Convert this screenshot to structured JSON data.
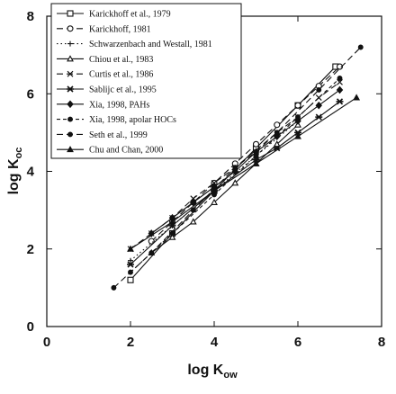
{
  "chart_data": {
    "type": "line",
    "title": "",
    "xlabel": "log K",
    "xlabel_sub": "ow",
    "ylabel": "log K",
    "ylabel_sub": "oc",
    "xlim": [
      0,
      8
    ],
    "ylim": [
      0,
      8
    ],
    "xticks": [
      "0",
      "2",
      "4",
      "6",
      "8"
    ],
    "yticks": [
      "0",
      "2",
      "4",
      "6",
      "8"
    ],
    "grid": false,
    "legend_position": "top-left",
    "series": [
      {
        "name": "Karickhoff et al., 1979",
        "dash": "solid",
        "marker": "square",
        "x": [
          2,
          3,
          4,
          5,
          6,
          6.9
        ],
        "y": [
          1.2,
          2.4,
          3.5,
          4.6,
          5.7,
          6.7
        ]
      },
      {
        "name": "Karickhoff, 1981",
        "dash": "longdash",
        "marker": "circle-open",
        "x": [
          2.5,
          3,
          3.5,
          4,
          4.5,
          5,
          5.5,
          6,
          6.5,
          7
        ],
        "y": [
          2.2,
          2.7,
          3.2,
          3.7,
          4.2,
          4.7,
          5.2,
          5.7,
          6.2,
          6.7
        ]
      },
      {
        "name": "Schwarzenbach and Westall, 1981",
        "dash": "dotted",
        "marker": "plus",
        "x": [
          2,
          3,
          4,
          5,
          6
        ],
        "y": [
          1.7,
          2.6,
          3.5,
          4.4,
          5.3
        ]
      },
      {
        "name": "Chiou et al., 1983",
        "dash": "solid",
        "marker": "triangle-open",
        "x": [
          2.5,
          3,
          3.5,
          4,
          4.5,
          5,
          5.5,
          6
        ],
        "y": [
          1.9,
          2.3,
          2.7,
          3.2,
          3.7,
          4.2,
          4.7,
          5.2
        ]
      },
      {
        "name": "Curtis et al., 1986",
        "dash": "longdash",
        "marker": "x",
        "x": [
          2,
          2.5,
          3,
          3.5,
          4,
          4.5,
          5,
          5.5,
          6,
          6.5,
          7
        ],
        "y": [
          2.0,
          2.4,
          2.8,
          3.3,
          3.7,
          4.1,
          4.5,
          5.0,
          5.4,
          5.9,
          6.3
        ]
      },
      {
        "name": "Sablijc et al., 1995",
        "dash": "solid",
        "marker": "asterisk",
        "x": [
          2,
          3,
          4,
          5,
          5.5,
          6,
          6.5,
          7
        ],
        "y": [
          1.6,
          2.6,
          3.5,
          4.3,
          4.6,
          5.0,
          5.4,
          5.8
        ]
      },
      {
        "name": "Xia, 1998, PAHs",
        "dash": "solid",
        "marker": "diamond",
        "x": [
          2.5,
          3,
          3.5,
          4,
          4.5,
          5,
          5.5,
          6,
          6.5,
          7
        ],
        "y": [
          2.4,
          2.8,
          3.2,
          3.6,
          4.0,
          4.5,
          4.9,
          5.3,
          5.7,
          6.1
        ]
      },
      {
        "name": "Xia, 1998, apolar HOCs",
        "dash": "shortdash",
        "marker": "dot",
        "x": [
          2,
          3,
          4,
          5,
          6,
          7
        ],
        "y": [
          1.4,
          2.4,
          3.4,
          4.4,
          5.4,
          6.4
        ]
      },
      {
        "name": "Seth et al., 1999",
        "dash": "longdash",
        "marker": "dot",
        "x": [
          1.6,
          2.5,
          3.5,
          4.5,
          5.5,
          6.5,
          7.5
        ],
        "y": [
          1.0,
          1.9,
          3.0,
          4.1,
          5.0,
          6.1,
          7.2
        ]
      },
      {
        "name": "Chu and Chan, 2000",
        "dash": "solid",
        "marker": "triangle",
        "x": [
          2,
          3,
          4,
          5,
          6,
          7.4
        ],
        "y": [
          2.0,
          2.7,
          3.5,
          4.2,
          4.9,
          5.9
        ]
      }
    ]
  }
}
